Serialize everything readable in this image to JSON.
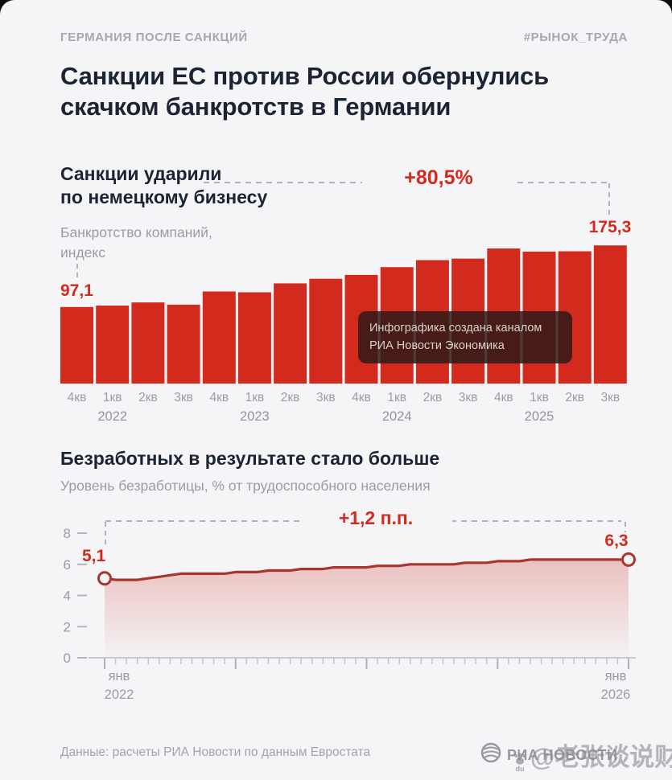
{
  "page": {
    "kicker_left": "ГЕРМАНИЯ ПОСЛЕ САНКЦИЙ",
    "kicker_right": "#РЫНОК_ТРУДА",
    "title": "Санкции ЕС против России обернулись скачком банкротств в Германии",
    "footer_source": "Данные: расчеты РИА Новости по данным Евростата",
    "brand": "РИА НОВОСТИ",
    "watermark": "@老张谈说财经",
    "watermark_badge": "du"
  },
  "colors": {
    "accent_red": "#d22b1e",
    "line_red": "#a8362e",
    "dark_text": "#1c2434",
    "gray_text": "#9b9ba3",
    "background": "#f5f5f7"
  },
  "tooltip": {
    "line1": "Инфографика создана каналом",
    "line2": "РИА Новости Экономика"
  },
  "chart_data": [
    {
      "type": "bar",
      "title": "Санкции ударили\nпо немецкому бизнесу",
      "subtitle": "Банкротство компаний,\nиндекс",
      "annotation": "+80,5%",
      "first_label": "97,1",
      "last_label": "175,3",
      "categories": [
        "4кв",
        "1кв",
        "2кв",
        "3кв",
        "4кв",
        "1кв",
        "2кв",
        "3кв",
        "4кв",
        "1кв",
        "2кв",
        "3кв",
        "4кв",
        "1кв",
        "2кв",
        "3кв"
      ],
      "values": [
        97.1,
        99.0,
        103.0,
        100.1,
        116.8,
        115.8,
        127.1,
        133.0,
        137.9,
        147.8,
        156.6,
        158.6,
        171.4,
        167.4,
        167.9,
        175.3
      ],
      "years": [
        {
          "label": "2022",
          "bar_index": 1
        },
        {
          "label": "2023",
          "bar_index": 5
        },
        {
          "label": "2024",
          "bar_index": 9
        },
        {
          "label": "2025",
          "bar_index": 13
        }
      ],
      "ylim": [
        0,
        180
      ],
      "grid": false,
      "legend": "none"
    },
    {
      "type": "line",
      "title": "Безработных в результате стало больше",
      "subtitle": "Уровень безработицы, % от трудоспособного населения",
      "annotation": "+1,2 п.п.",
      "start_label": "5,1",
      "end_label": "6,3",
      "x_start_label": [
        "янв",
        "2022"
      ],
      "x_end_label": [
        "янв",
        "2026"
      ],
      "y_ticks": [
        "0",
        "2",
        "4",
        "6",
        "8"
      ],
      "ylim": [
        0,
        8.5
      ],
      "x_unit": "month",
      "x_major_tick_every": 12,
      "values": [
        5.1,
        5.0,
        5.0,
        5.0,
        5.1,
        5.2,
        5.3,
        5.4,
        5.4,
        5.4,
        5.4,
        5.4,
        5.5,
        5.5,
        5.5,
        5.6,
        5.6,
        5.6,
        5.7,
        5.7,
        5.7,
        5.8,
        5.8,
        5.8,
        5.8,
        5.9,
        5.9,
        5.9,
        6.0,
        6.0,
        6.0,
        6.0,
        6.0,
        6.1,
        6.1,
        6.1,
        6.2,
        6.2,
        6.2,
        6.3,
        6.3,
        6.3,
        6.3,
        6.3,
        6.3,
        6.3,
        6.3,
        6.3,
        6.3
      ],
      "grid": false,
      "legend": "none"
    }
  ]
}
